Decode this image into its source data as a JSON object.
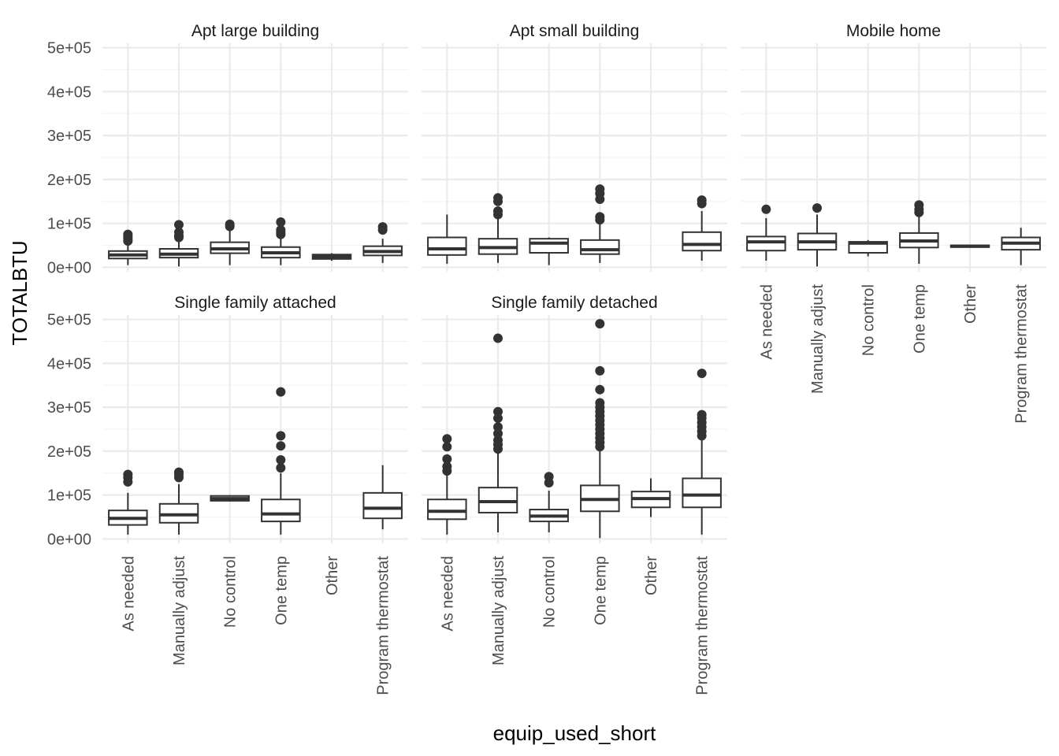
{
  "chart_data": {
    "type": "boxplot",
    "facet_layout": "facet_wrap, 3 columns, 2 rows",
    "xlabel": "equip_used_short",
    "ylabel": "TOTALBTU",
    "ylim": [
      -10000,
      510000
    ],
    "y_ticks": [
      0,
      100000,
      200000,
      300000,
      400000,
      500000
    ],
    "y_tick_labels": [
      "0e+00",
      "1e+05",
      "2e+05",
      "3e+05",
      "4e+05",
      "5e+05"
    ],
    "categories": [
      "As needed",
      "Manually adjust",
      "No control",
      "One temp",
      "Other",
      "Program thermostat"
    ],
    "colors": {
      "box_line": "#333333",
      "box_fill": "#ffffff",
      "grid": "#ebebeb",
      "text": "#4d4d4d"
    },
    "panels": [
      {
        "title": "Apt large building",
        "boxes": [
          {
            "category": "As needed",
            "lower": 5000,
            "q1": 20000,
            "median": 28000,
            "q3": 37000,
            "upper": 55000,
            "outliers": [
              60000,
              65000,
              70000,
              75000
            ]
          },
          {
            "category": "Manually adjust",
            "lower": 2000,
            "q1": 22000,
            "median": 30000,
            "q3": 42000,
            "upper": 62000,
            "outliers": [
              68000,
              72000,
              80000,
              97000
            ]
          },
          {
            "category": "No control",
            "lower": 5000,
            "q1": 32000,
            "median": 42000,
            "q3": 57000,
            "upper": 88000,
            "outliers": [
              93000,
              98000
            ]
          },
          {
            "category": "One temp",
            "lower": 5000,
            "q1": 22000,
            "median": 33000,
            "q3": 46000,
            "upper": 70000,
            "outliers": [
              75000,
              80000,
              85000,
              103000
            ]
          },
          {
            "category": "Other",
            "lower": 15000,
            "q1": 19000,
            "median": 24000,
            "q3": 29000,
            "upper": 32000,
            "outliers": []
          },
          {
            "category": "Program thermostat",
            "lower": 10000,
            "q1": 27000,
            "median": 36000,
            "q3": 48000,
            "upper": 65000,
            "outliers": [
              85000,
              92000
            ]
          }
        ]
      },
      {
        "title": "Apt small building",
        "boxes": [
          {
            "category": "As needed",
            "lower": 8000,
            "q1": 28000,
            "median": 42000,
            "q3": 68000,
            "upper": 120000,
            "outliers": []
          },
          {
            "category": "Manually adjust",
            "lower": 10000,
            "q1": 30000,
            "median": 45000,
            "q3": 65000,
            "upper": 118000,
            "outliers": [
              120000,
              128000,
              150000,
              158000
            ]
          },
          {
            "category": "No control",
            "lower": 5000,
            "q1": 33000,
            "median": 55000,
            "q3": 65000,
            "upper": 68000,
            "outliers": []
          },
          {
            "category": "One temp",
            "lower": 10000,
            "q1": 30000,
            "median": 40000,
            "q3": 62000,
            "upper": 100000,
            "outliers": [
              108000,
              115000,
              155000,
              168000,
              178000
            ]
          },
          {
            "category": "Program thermostat",
            "lower": 15000,
            "q1": 38000,
            "median": 52000,
            "q3": 80000,
            "upper": 128000,
            "outliers": [
              145000,
              153000
            ]
          }
        ]
      },
      {
        "title": "Mobile home",
        "boxes": [
          {
            "category": "As needed",
            "lower": 15000,
            "q1": 38000,
            "median": 58000,
            "q3": 70000,
            "upper": 112000,
            "outliers": [
              132000
            ]
          },
          {
            "category": "Manually adjust",
            "lower": 2000,
            "q1": 40000,
            "median": 58000,
            "q3": 77000,
            "upper": 120000,
            "outliers": [
              135000
            ]
          },
          {
            "category": "No control",
            "lower": 25000,
            "q1": 33000,
            "median": 55000,
            "q3": 58000,
            "upper": 62000,
            "outliers": []
          },
          {
            "category": "One temp",
            "lower": 8000,
            "q1": 45000,
            "median": 60000,
            "q3": 78000,
            "upper": 118000,
            "outliers": [
              125000,
              132000,
              142000
            ]
          },
          {
            "category": "Other",
            "lower": 45000,
            "q1": 46000,
            "median": 48000,
            "q3": 50000,
            "upper": 51000,
            "outliers": []
          },
          {
            "category": "Program thermostat",
            "lower": 5000,
            "q1": 40000,
            "median": 55000,
            "q3": 68000,
            "upper": 90000,
            "outliers": []
          }
        ]
      },
      {
        "title": "Single family attached",
        "boxes": [
          {
            "category": "As needed",
            "lower": 10000,
            "q1": 32000,
            "median": 47000,
            "q3": 65000,
            "upper": 105000,
            "outliers": [
              130000,
              140000,
              147000
            ]
          },
          {
            "category": "Manually adjust",
            "lower": 10000,
            "q1": 37000,
            "median": 55000,
            "q3": 80000,
            "upper": 125000,
            "outliers": [
              140000,
              147000,
              152000
            ]
          },
          {
            "category": "No control",
            "lower": 85000,
            "q1": 87000,
            "median": 92000,
            "q3": 98000,
            "upper": 100000,
            "outliers": []
          },
          {
            "category": "One temp",
            "lower": 10000,
            "q1": 40000,
            "median": 57000,
            "q3": 90000,
            "upper": 150000,
            "outliers": [
              162000,
              180000,
              212000,
              235000,
              335000
            ]
          },
          {
            "category": "Program thermostat",
            "lower": 22000,
            "q1": 47000,
            "median": 70000,
            "q3": 105000,
            "upper": 168000,
            "outliers": []
          }
        ]
      },
      {
        "title": "Single family detached",
        "boxes": [
          {
            "category": "As needed",
            "lower": 10000,
            "q1": 45000,
            "median": 63000,
            "q3": 90000,
            "upper": 150000,
            "outliers": [
              155000,
              165000,
              182000,
              210000,
              228000
            ]
          },
          {
            "category": "Manually adjust",
            "lower": 15000,
            "q1": 60000,
            "median": 85000,
            "q3": 117000,
            "upper": 198000,
            "outliers": [
              205000,
              215000,
              225000,
              240000,
              255000,
              275000,
              290000,
              457000
            ]
          },
          {
            "category": "No control",
            "lower": 15000,
            "q1": 40000,
            "median": 52000,
            "q3": 67000,
            "upper": 110000,
            "outliers": [
              128000,
              142000
            ]
          },
          {
            "category": "One temp",
            "lower": 2000,
            "q1": 63000,
            "median": 90000,
            "q3": 122000,
            "upper": 205000,
            "outliers": [
              210000,
              220000,
              230000,
              240000,
              250000,
              260000,
              270000,
              280000,
              290000,
              300000,
              310000,
              340000,
              383000,
              490000
            ]
          },
          {
            "category": "Other",
            "lower": 50000,
            "q1": 72000,
            "median": 92000,
            "q3": 108000,
            "upper": 138000,
            "outliers": []
          },
          {
            "category": "Program thermostat",
            "lower": 10000,
            "q1": 72000,
            "median": 100000,
            "q3": 138000,
            "upper": 230000,
            "outliers": [
              235000,
              245000,
              255000,
              265000,
              275000,
              283000,
              377000
            ]
          }
        ]
      }
    ]
  }
}
